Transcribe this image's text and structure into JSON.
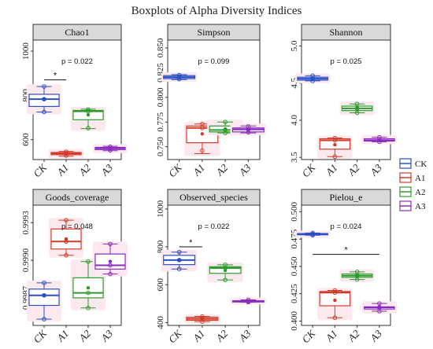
{
  "figure": {
    "title": "Boxplots of Alpha Diversity Indices"
  },
  "legend": {
    "position": "right",
    "items": [
      "CK",
      "A1",
      "A2",
      "A3"
    ]
  },
  "colors": {
    "CK": "#2b4fc4",
    "A1": "#d23b2a",
    "A2": "#2e9a2e",
    "A3": "#8a2bbd",
    "fill": "#fbe9ee"
  },
  "chart_data": [
    {
      "type": "box",
      "title": "Chao1",
      "ylim": [
        510,
        1050
      ],
      "yticks": [
        {
          "v": 600,
          "label": "600"
        },
        {
          "v": 800,
          "label": "800"
        },
        {
          "v": 1000,
          "label": "1000"
        }
      ],
      "pvalue": "p = 0.022",
      "sig": [
        {
          "from": "CK",
          "to": "A1",
          "label": "*",
          "y": 870
        }
      ],
      "categories": [
        "CK",
        "A1",
        "A2",
        "A3"
      ],
      "series": [
        {
          "name": "CK",
          "min": 725,
          "q1": 750,
          "median": 783,
          "q3": 805,
          "max": 840,
          "mean": 783,
          "points": [
            725,
            783,
            840
          ]
        },
        {
          "name": "A1",
          "min": 525,
          "q1": 532,
          "median": 537,
          "q3": 542,
          "max": 547,
          "mean": 537,
          "points": [
            528,
            537,
            545
          ]
        },
        {
          "name": "A2",
          "min": 650,
          "q1": 690,
          "median": 728,
          "q3": 732,
          "max": 738,
          "mean": 712,
          "points": [
            652,
            728,
            736
          ]
        },
        {
          "name": "A3",
          "min": 550,
          "q1": 555,
          "median": 561,
          "q3": 565,
          "max": 570,
          "mean": 561,
          "points": [
            552,
            561,
            568
          ]
        }
      ]
    },
    {
      "type": "box",
      "title": "Simpson",
      "ylim": [
        0.737,
        0.858
      ],
      "yticks": [
        {
          "v": 0.75,
          "label": "0.750"
        },
        {
          "v": 0.775,
          "label": "0.775"
        },
        {
          "v": 0.8,
          "label": "0.800"
        },
        {
          "v": 0.825,
          "label": "0.825"
        },
        {
          "v": 0.85,
          "label": "0.850"
        }
      ],
      "pvalue": "p = 0.099",
      "sig": [],
      "categories": [
        "CK",
        "A1",
        "A2",
        "A3"
      ],
      "series": [
        {
          "name": "CK",
          "min": 0.818,
          "q1": 0.819,
          "median": 0.8205,
          "q3": 0.822,
          "max": 0.823,
          "mean": 0.8205,
          "points": [
            0.8185,
            0.8205,
            0.8225
          ]
        },
        {
          "name": "A1",
          "min": 0.743,
          "q1": 0.754,
          "median": 0.769,
          "q3": 0.771,
          "max": 0.773,
          "mean": 0.763,
          "points": [
            0.746,
            0.769,
            0.773
          ]
        },
        {
          "name": "A2",
          "min": 0.764,
          "q1": 0.765,
          "median": 0.767,
          "q3": 0.771,
          "max": 0.775,
          "mean": 0.768,
          "points": [
            0.764,
            0.767,
            0.775
          ]
        },
        {
          "name": "A3",
          "min": 0.764,
          "q1": 0.765,
          "median": 0.7675,
          "q3": 0.769,
          "max": 0.771,
          "mean": 0.7675,
          "points": [
            0.7645,
            0.7675,
            0.7705
          ]
        }
      ]
    },
    {
      "type": "box",
      "title": "Shannon",
      "ylim": [
        3.47,
        5.08
      ],
      "yticks": [
        {
          "v": 3.5,
          "label": "3.5"
        },
        {
          "v": 4.0,
          "label": "4.0"
        },
        {
          "v": 4.5,
          "label": "4.5"
        },
        {
          "v": 5.0,
          "label": "5.0"
        }
      ],
      "pvalue": "p = 0.025",
      "sig": [],
      "categories": [
        "CK",
        "A1",
        "A2",
        "A3"
      ],
      "series": [
        {
          "name": "CK",
          "min": 4.53,
          "q1": 4.54,
          "median": 4.56,
          "q3": 4.58,
          "max": 4.6,
          "mean": 4.565,
          "points": [
            4.53,
            4.56,
            4.6
          ]
        },
        {
          "name": "A1",
          "min": 3.51,
          "q1": 3.61,
          "median": 3.73,
          "q3": 3.75,
          "max": 3.76,
          "mean": 3.67,
          "points": [
            3.51,
            3.73,
            3.76
          ]
        },
        {
          "name": "A2",
          "min": 4.1,
          "q1": 4.13,
          "median": 4.16,
          "q3": 4.19,
          "max": 4.22,
          "mean": 4.16,
          "points": [
            4.1,
            4.16,
            4.22
          ]
        },
        {
          "name": "A3",
          "min": 3.71,
          "q1": 3.72,
          "median": 3.73,
          "q3": 3.75,
          "max": 3.77,
          "mean": 3.735,
          "points": [
            3.71,
            3.73,
            3.77
          ]
        }
      ]
    },
    {
      "type": "box",
      "title": "Goods_coverage",
      "ylim": [
        0.99848,
        0.99944
      ],
      "yticks": [
        {
          "v": 0.9987,
          "label": "0.9987"
        },
        {
          "v": 0.999,
          "label": "0.9990"
        },
        {
          "v": 0.9993,
          "label": "0.9993"
        }
      ],
      "pvalue": "p = 0.048",
      "sig": [],
      "categories": [
        "CK",
        "A1",
        "A2",
        "A3"
      ],
      "series": [
        {
          "name": "CK",
          "min": 0.99853,
          "q1": 0.99864,
          "median": 0.99872,
          "q3": 0.99877,
          "max": 0.99882,
          "mean": 0.99872,
          "points": [
            0.99853,
            0.99872,
            0.99882
          ]
        },
        {
          "name": "A1",
          "min": 0.99904,
          "q1": 0.99909,
          "median": 0.99915,
          "q3": 0.99925,
          "max": 0.99932,
          "mean": 0.99917,
          "points": [
            0.99904,
            0.99915,
            0.99932
          ]
        },
        {
          "name": "A2",
          "min": 0.99862,
          "q1": 0.9987,
          "median": 0.99874,
          "q3": 0.99886,
          "max": 0.99899,
          "mean": 0.99878,
          "points": [
            0.99862,
            0.99874,
            0.99899
          ]
        },
        {
          "name": "A3",
          "min": 0.99889,
          "q1": 0.99893,
          "median": 0.99896,
          "q3": 0.99905,
          "max": 0.99913,
          "mean": 0.99899,
          "points": [
            0.99889,
            0.99896,
            0.99913
          ]
        }
      ]
    },
    {
      "type": "box",
      "title": "Observed_species",
      "ylim": [
        385,
        1020
      ],
      "yticks": [
        {
          "v": 400,
          "label": "400"
        },
        {
          "v": 600,
          "label": "600"
        },
        {
          "v": 800,
          "label": "800"
        },
        {
          "v": 1000,
          "label": "1000"
        }
      ],
      "pvalue": "p = 0.022",
      "sig": [
        {
          "from": "CK",
          "to": "A1",
          "label": "*",
          "y": 800
        }
      ],
      "categories": [
        "CK",
        "A1",
        "A2",
        "A3"
      ],
      "series": [
        {
          "name": "CK",
          "min": 683,
          "q1": 706,
          "median": 730,
          "q3": 755,
          "max": 772,
          "mean": 730,
          "points": [
            683,
            730,
            772
          ]
        },
        {
          "name": "A1",
          "min": 405,
          "q1": 412,
          "median": 420,
          "q3": 428,
          "max": 432,
          "mean": 420,
          "points": [
            405,
            420,
            432
          ]
        },
        {
          "name": "A2",
          "min": 625,
          "q1": 660,
          "median": 688,
          "q3": 695,
          "max": 705,
          "mean": 675,
          "points": [
            625,
            688,
            705
          ]
        },
        {
          "name": "A3",
          "min": 508,
          "q1": 510,
          "median": 513,
          "q3": 515,
          "max": 520,
          "mean": 513,
          "points": [
            508,
            513,
            520
          ]
        }
      ]
    },
    {
      "type": "box",
      "title": "Pielou_e",
      "ylim": [
        0.396,
        0.506
      ],
      "yticks": [
        {
          "v": 0.4,
          "label": "0.400"
        },
        {
          "v": 0.425,
          "label": "0.425"
        },
        {
          "v": 0.45,
          "label": "0.450"
        },
        {
          "v": 0.475,
          "label": "0.475"
        },
        {
          "v": 0.5,
          "label": "0.500"
        }
      ],
      "pvalue": "p = 0.024",
      "sig": [
        {
          "from": "CK",
          "to": "A3",
          "label": "*",
          "y": 0.461
        }
      ],
      "categories": [
        "CK",
        "A1",
        "A2",
        "A3"
      ],
      "series": [
        {
          "name": "CK",
          "min": 0.4785,
          "q1": 0.479,
          "median": 0.4795,
          "q3": 0.48,
          "max": 0.4805,
          "mean": 0.4795,
          "points": [
            0.4785,
            0.4795,
            0.4805
          ]
        },
        {
          "name": "A1",
          "min": 0.403,
          "q1": 0.414,
          "median": 0.426,
          "q3": 0.427,
          "max": 0.428,
          "mean": 0.419,
          "points": [
            0.403,
            0.426,
            0.428
          ]
        },
        {
          "name": "A2",
          "min": 0.438,
          "q1": 0.44,
          "median": 0.4415,
          "q3": 0.443,
          "max": 0.445,
          "mean": 0.4415,
          "points": [
            0.438,
            0.4415,
            0.445
          ]
        },
        {
          "name": "A3",
          "min": 0.409,
          "q1": 0.411,
          "median": 0.4125,
          "q3": 0.413,
          "max": 0.416,
          "mean": 0.4125,
          "points": [
            0.409,
            0.4125,
            0.416
          ]
        }
      ]
    }
  ]
}
